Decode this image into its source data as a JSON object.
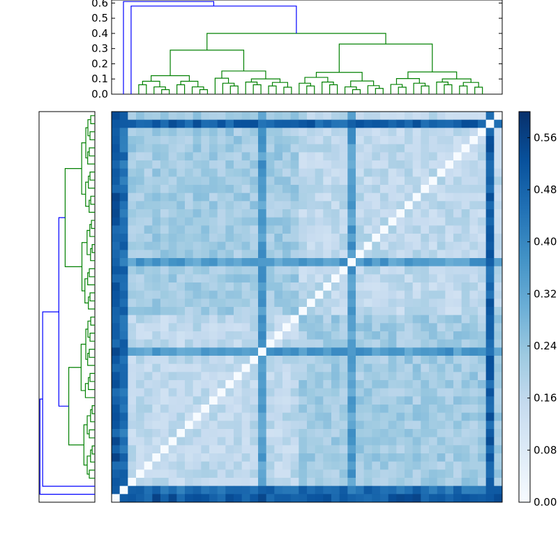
{
  "chart_data": [
    {
      "type": "dendrogram",
      "orientation": "top",
      "ylim": [
        0.0,
        0.62
      ],
      "yticks": [
        "0.0",
        "0.1",
        "0.2",
        "0.3",
        "0.4",
        "0.5",
        "0.6"
      ],
      "colors": {
        "link_above_threshold": "#0000ff",
        "link_cluster": "#008000"
      },
      "root_merges": [
        {
          "height": 0.61,
          "left": "leaf-0",
          "right": "subtree"
        },
        {
          "height": 0.58,
          "left": "leaf-1",
          "right": "subtree"
        },
        {
          "height": 0.4,
          "left": "cluster-left",
          "right": "cluster-right"
        }
      ]
    },
    {
      "type": "dendrogram",
      "orientation": "left",
      "colors": {
        "link_above_threshold": "#0000ff",
        "link_cluster": "#008000"
      }
    },
    {
      "type": "heatmap",
      "rows": 48,
      "cols": 48,
      "value_range": [
        0.0,
        0.6
      ],
      "colormap": "Blues",
      "diagonal": 0.0,
      "colorbar": {
        "ticks": [
          "0.00",
          "0.08",
          "0.16",
          "0.24",
          "0.32",
          "0.40",
          "0.48",
          "0.56"
        ],
        "range": [
          0.0,
          0.6
        ]
      },
      "dominant_cells": {
        "row_col_0": 0.52,
        "row_col_1": 0.47,
        "row_col_18": 0.36,
        "row_col_29": 0.36,
        "row_col_46": 0.5
      }
    }
  ]
}
